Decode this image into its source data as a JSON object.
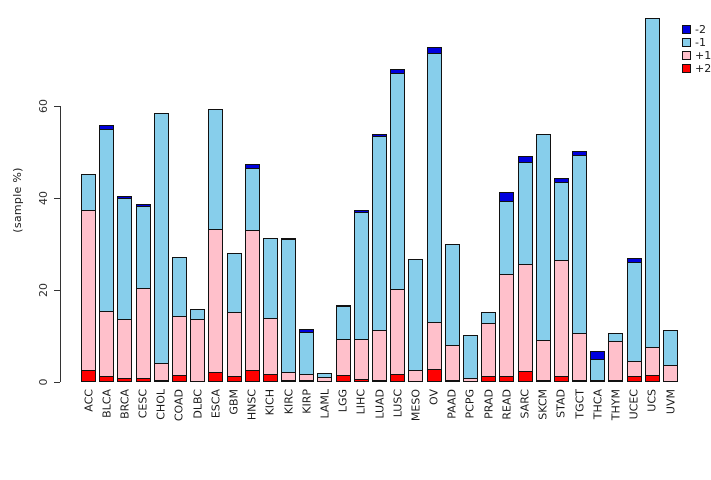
{
  "chart_data": {
    "type": "bar",
    "subtype": "stacked-vertical",
    "title": "",
    "xlabel": "",
    "ylabel": "(sample %)",
    "yticks": [
      0,
      20,
      40,
      60
    ],
    "ylim": [
      0,
      82
    ],
    "grid": false,
    "legend_position": "top-right",
    "bar_border_color": "#111111",
    "categories": [
      "ACC",
      "BLCA",
      "BRCA",
      "CESC",
      "CHOL",
      "COAD",
      "DLBC",
      "ESCA",
      "GBM",
      "HNSC",
      "KICH",
      "KIRC",
      "KIRP",
      "LAML",
      "LGG",
      "LIHC",
      "LUAD",
      "LUSC",
      "MESO",
      "OV",
      "PAAD",
      "PCPG",
      "PRAD",
      "READ",
      "SARC",
      "SKCM",
      "STAD",
      "TGCT",
      "THCA",
      "THYM",
      "UCEC",
      "UCS",
      "UVM"
    ],
    "stack_order_bottom_to_top": [
      "+2",
      "+1",
      "-1",
      "-2"
    ],
    "series": [
      {
        "name": "+2",
        "color": "#ff0000",
        "values": [
          2.7,
          1.4,
          0.9,
          0.8,
          0.3,
          1.6,
          0,
          2.1,
          1.2,
          2.7,
          1.8,
          0.4,
          0.4,
          0,
          1.5,
          0.6,
          0.4,
          1.7,
          0,
          2.8,
          0.5,
          0,
          1.2,
          1.2,
          2.4,
          0.5,
          1.2,
          0.3,
          0,
          0.4,
          1.4,
          1.6,
          0
        ]
      },
      {
        "name": "+1",
        "color": "#ffc0cb",
        "values": [
          34.9,
          14.3,
          13.1,
          19.7,
          4.0,
          13.1,
          13.6,
          31.3,
          14.2,
          30.7,
          12.4,
          2.0,
          1.5,
          1.0,
          8.0,
          8.9,
          11.1,
          18.8,
          2.6,
          10.5,
          7.9,
          0.9,
          11.7,
          22.4,
          23.4,
          9.0,
          25.5,
          10.4,
          0.5,
          8.7,
          3.5,
          6.4,
          3.7
        ]
      },
      {
        "name": "-1",
        "color": "#87ceeb",
        "values": [
          8.0,
          39.8,
          26.5,
          18.0,
          54.5,
          13.1,
          2.3,
          26.3,
          13.1,
          13.8,
          17.5,
          29.2,
          9.4,
          1.0,
          7.3,
          27.8,
          42.3,
          47.2,
          24.4,
          58.8,
          22.1,
          9.5,
          2.5,
          16.1,
          22.5,
          44.9,
          17.1,
          38.9,
          4.7,
          2.0,
          21.7,
          71.8,
          7.8
        ]
      },
      {
        "name": "-2",
        "color": "#0000dd",
        "values": [
          0,
          1.0,
          0.7,
          0.6,
          0,
          0,
          0,
          0,
          0,
          1.1,
          0,
          0.5,
          0.9,
          0,
          0.4,
          0.6,
          0.6,
          1.0,
          0,
          1.5,
          0,
          0,
          0,
          2.2,
          1.5,
          0,
          1.0,
          1.0,
          2.0,
          0,
          1.0,
          0,
          0
        ]
      }
    ],
    "legend_items": [
      {
        "label": "-2",
        "color": "#0000dd"
      },
      {
        "label": "-1",
        "color": "#87ceeb"
      },
      {
        "label": "+1",
        "color": "#ffc0cb"
      },
      {
        "label": "+2",
        "color": "#ff0000"
      }
    ]
  }
}
